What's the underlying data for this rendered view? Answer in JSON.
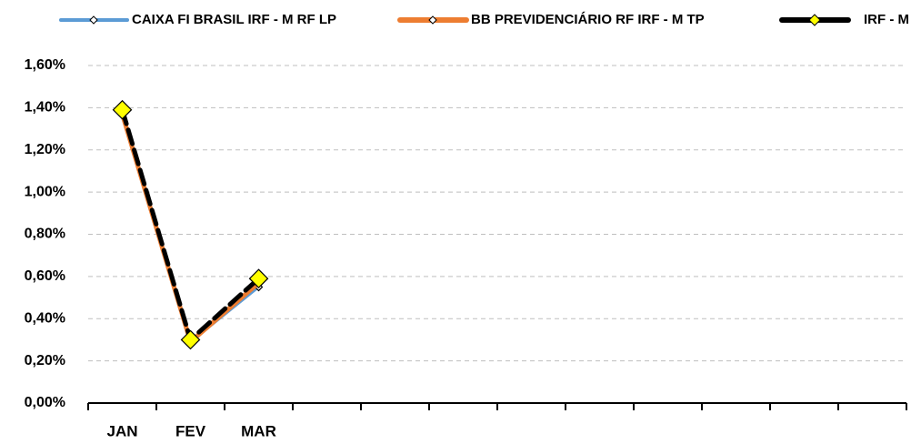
{
  "chart_data": {
    "type": "line",
    "categories": [
      "JAN",
      "FEV",
      "MAR",
      null,
      null,
      null,
      null,
      null,
      null,
      null,
      null,
      null
    ],
    "series": [
      {
        "name": "CAIXA FI BRASIL IRF - M RF LP",
        "color": "#5b9bd5",
        "values": [
          1.37,
          0.29,
          0.55,
          null,
          null,
          null,
          null,
          null,
          null,
          null,
          null,
          null
        ]
      },
      {
        "name": "BB PREVIDENCIÁRIO RF IRF - M TP",
        "color": "#ed7d31",
        "values": [
          1.37,
          0.29,
          0.57,
          null,
          null,
          null,
          null,
          null,
          null,
          null,
          null,
          null
        ]
      },
      {
        "name": "IRF - M",
        "color": "#000000",
        "marker_color": "#ffff00",
        "values": [
          1.39,
          0.3,
          0.59,
          null,
          null,
          null,
          null,
          null,
          null,
          null,
          null,
          null
        ]
      }
    ],
    "ylim": [
      0,
      1.6
    ],
    "yticks": [
      {
        "value": 0,
        "label": "0,00%"
      },
      {
        "value": 0.2,
        "label": "0,20%"
      },
      {
        "value": 0.4,
        "label": "0,40%"
      },
      {
        "value": 0.6,
        "label": "0,60%"
      },
      {
        "value": 0.8,
        "label": "0,80%"
      },
      {
        "value": 1.0,
        "label": "1,00%"
      },
      {
        "value": 1.2,
        "label": "1,20%"
      },
      {
        "value": 1.4,
        "label": "1,40%"
      },
      {
        "value": 1.6,
        "label": "1,60%"
      }
    ],
    "grid": true,
    "legend": "top"
  }
}
